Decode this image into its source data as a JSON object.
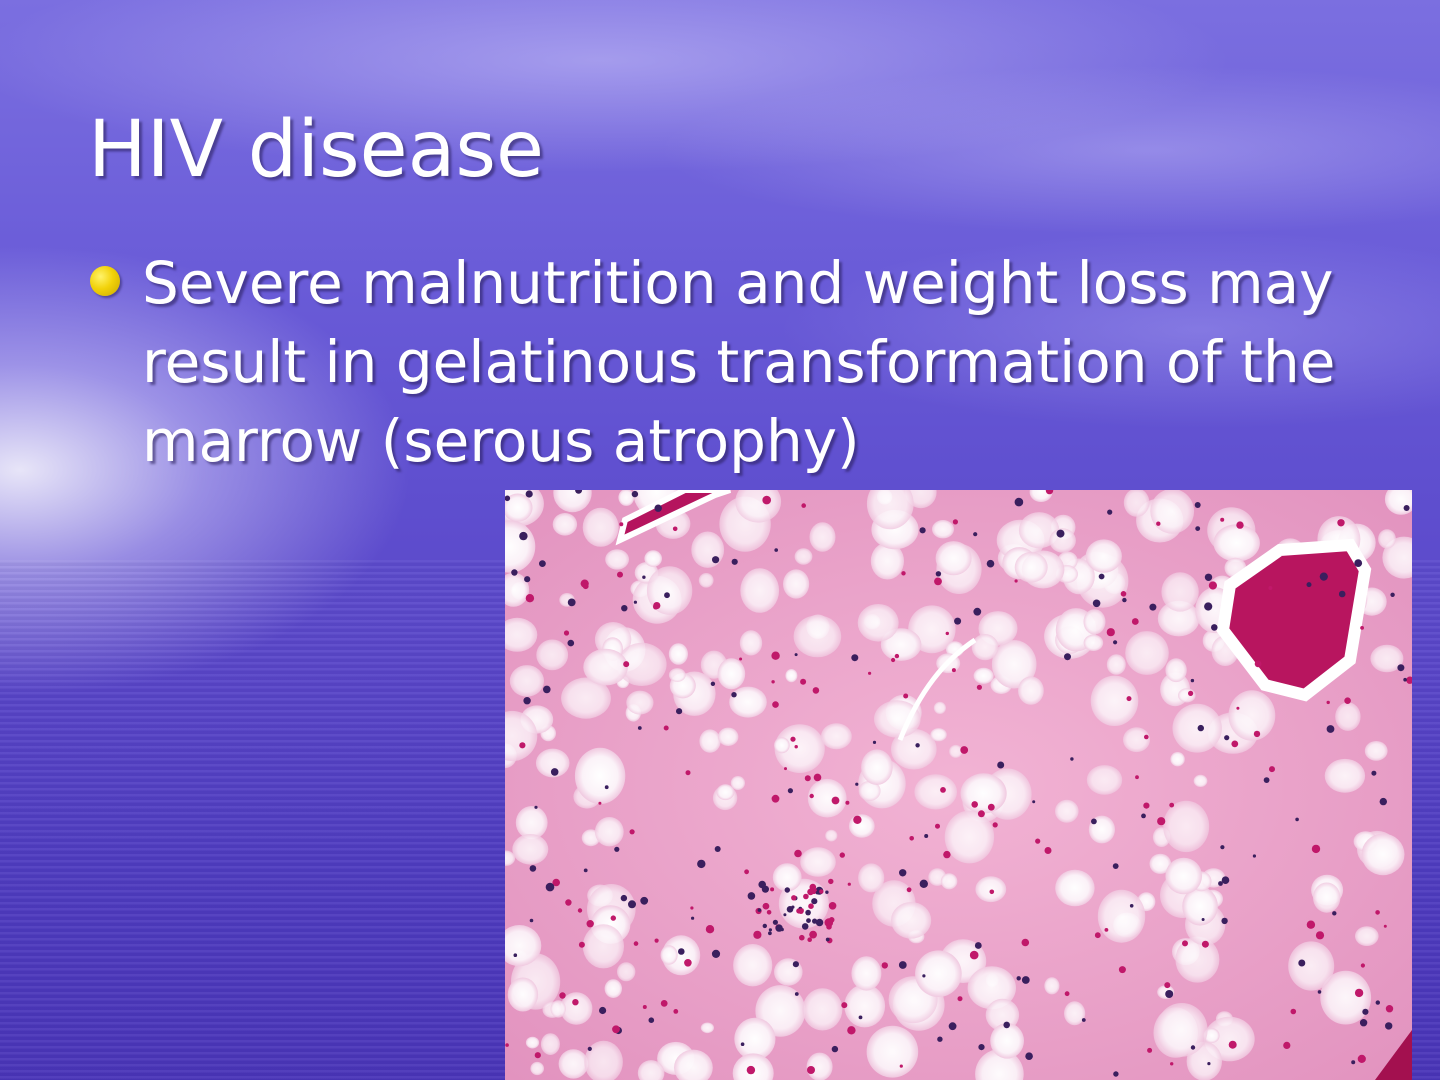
{
  "slide": {
    "title": "HIV disease",
    "bullets": [
      {
        "text": "Severe malnutrition and weight loss may result in gelatinous transformation of the marrow (serous atrophy)"
      }
    ],
    "image": {
      "icon": "histology-micrograph-image",
      "description_hidden": true
    }
  },
  "colors": {
    "bullet": "#f2d20a",
    "text": "#ffffff",
    "tissue": "#e89fc6",
    "bone": "#b5145e"
  }
}
